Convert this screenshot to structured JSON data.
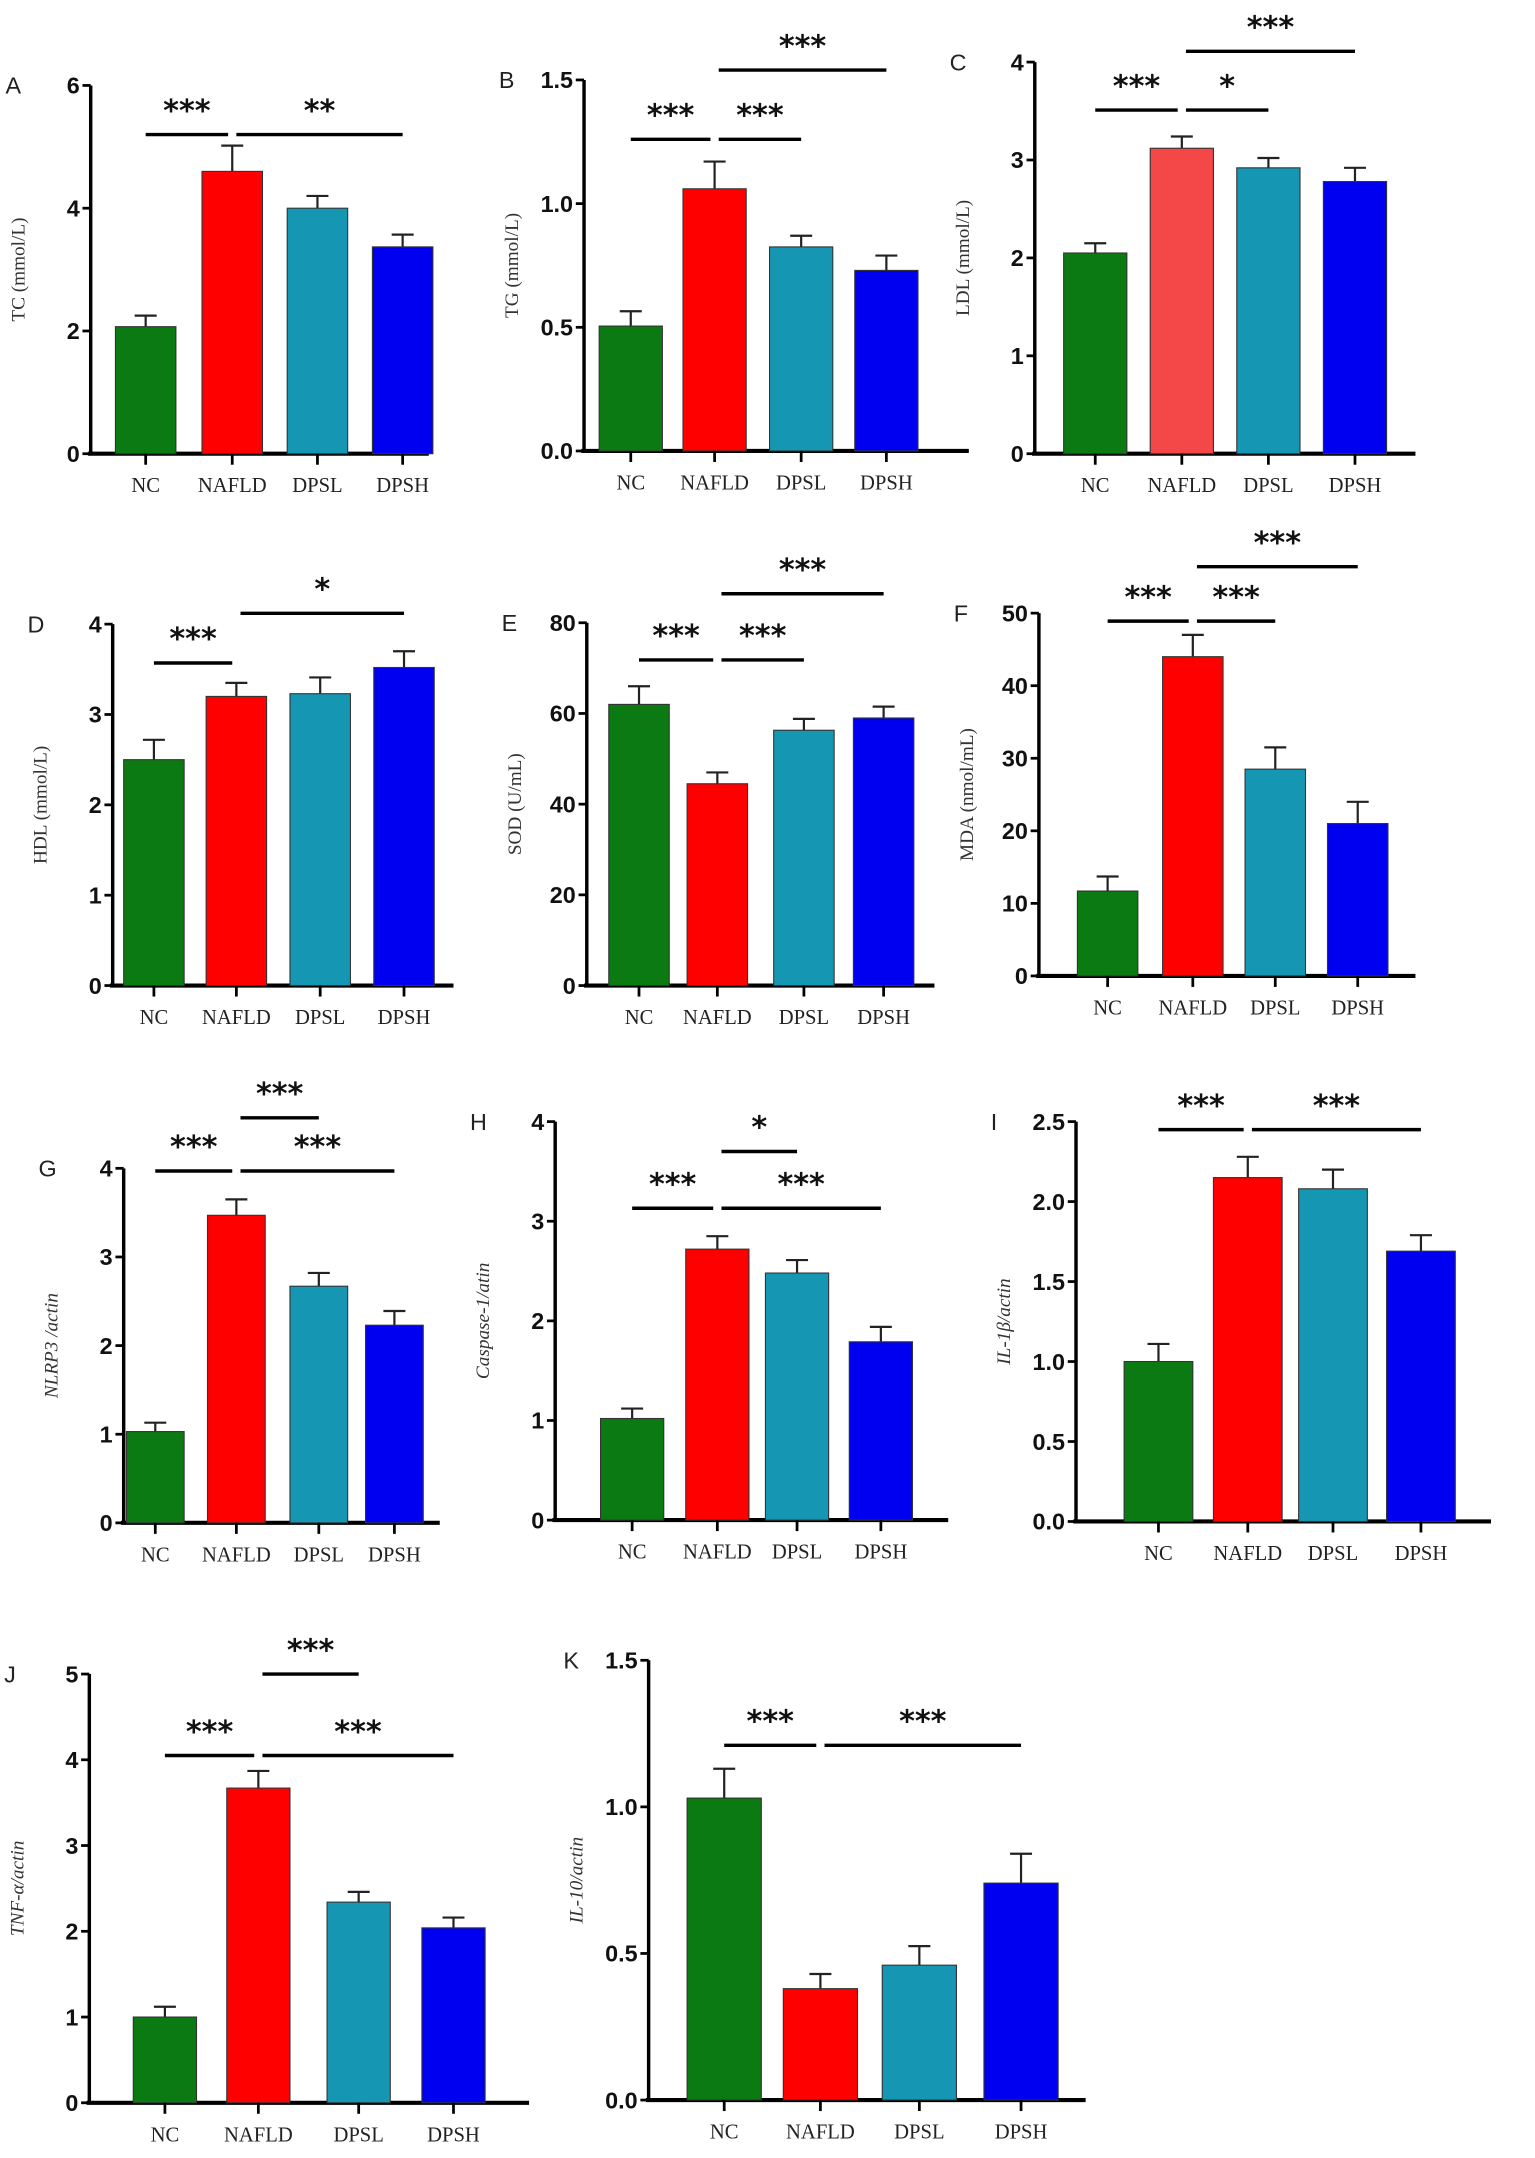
{
  "colors": {
    "NC": "#0b7a12",
    "NAFLD": "#ff0000",
    "NAFLD_C": "#f44848",
    "DPSL": "#1597b3",
    "DPSH": "#0000f0"
  },
  "chart_data": [
    {
      "type": "bar",
      "panel": "A",
      "ylabel": "TC (mmol/L)",
      "italic": false,
      "categories": [
        "NC",
        "NAFLD",
        "DPSL",
        "DPSH"
      ],
      "values": [
        2.07,
        4.6,
        4.0,
        3.37
      ],
      "errors": [
        0.18,
        0.42,
        0.2,
        0.2
      ],
      "ylim": [
        0,
        6
      ],
      "ticks": [
        "0",
        "2",
        "4",
        "6"
      ],
      "sig": [
        {
          "from": 0,
          "to": 1,
          "label": "***",
          "y": 5.2
        },
        {
          "from": 1,
          "to": 3,
          "label": "**",
          "y": 5.2
        }
      ]
    },
    {
      "type": "bar",
      "panel": "B",
      "ylabel": "TG (mmol/L)",
      "italic": false,
      "categories": [
        "NC",
        "NAFLD",
        "DPSL",
        "DPSH"
      ],
      "values": [
        0.505,
        1.06,
        0.825,
        0.73
      ],
      "errors": [
        0.06,
        0.11,
        0.045,
        0.06
      ],
      "ylim": [
        0,
        1.5
      ],
      "ticks": [
        "0.0",
        "0.5",
        "1.0",
        "1.5"
      ],
      "sig": [
        {
          "from": 0,
          "to": 1,
          "label": "***",
          "y": 1.26
        },
        {
          "from": 1,
          "to": 2,
          "label": "***",
          "y": 1.26
        },
        {
          "from": 1,
          "to": 3,
          "label": "***",
          "y": 1.54
        }
      ]
    },
    {
      "type": "bar",
      "panel": "C",
      "ylabel": "LDL (mmol/L)",
      "italic": false,
      "categories": [
        "NC",
        "NAFLD",
        "DPSL",
        "DPSH"
      ],
      "values": [
        2.05,
        3.12,
        2.92,
        2.78
      ],
      "errors": [
        0.1,
        0.12,
        0.1,
        0.14
      ],
      "ylim": [
        0,
        4
      ],
      "ticks": [
        "0",
        "1",
        "2",
        "3",
        "4"
      ],
      "sig": [
        {
          "from": 0,
          "to": 1,
          "label": "***",
          "y": 3.51
        },
        {
          "from": 1,
          "to": 2,
          "label": "*",
          "y": 3.51
        },
        {
          "from": 1,
          "to": 3,
          "label": "***",
          "y": 4.11
        }
      ]
    },
    {
      "type": "bar",
      "panel": "D",
      "ylabel": "HDL (mmol/L)",
      "italic": false,
      "categories": [
        "NC",
        "NAFLD",
        "DPSL",
        "DPSH"
      ],
      "values": [
        2.5,
        3.2,
        3.23,
        3.52
      ],
      "errors": [
        0.22,
        0.15,
        0.18,
        0.18
      ],
      "ylim": [
        0,
        4
      ],
      "ticks": [
        "0",
        "1",
        "2",
        "3",
        "4"
      ],
      "sig": [
        {
          "from": 0,
          "to": 1,
          "label": "***",
          "y": 3.57
        },
        {
          "from": 1,
          "to": 3,
          "label": "*",
          "y": 4.12
        }
      ]
    },
    {
      "type": "bar",
      "panel": "E",
      "ylabel": "SOD (U/mL)",
      "italic": false,
      "categories": [
        "NC",
        "NAFLD",
        "DPSL",
        "DPSH"
      ],
      "values": [
        62,
        44.5,
        56.3,
        59
      ],
      "errors": [
        4,
        2.5,
        2.5,
        2.5
      ],
      "ylim": [
        0,
        80
      ],
      "ticks": [
        "0",
        "20",
        "40",
        "60",
        "80"
      ],
      "sig": [
        {
          "from": 0,
          "to": 1,
          "label": "***",
          "y": 71.8
        },
        {
          "from": 1,
          "to": 2,
          "label": "***",
          "y": 71.8
        },
        {
          "from": 1,
          "to": 3,
          "label": "***",
          "y": 86.4
        }
      ]
    },
    {
      "type": "bar",
      "panel": "F",
      "ylabel": "MDA (nmol/mL)",
      "italic": false,
      "categories": [
        "NC",
        "NAFLD",
        "DPSL",
        "DPSH"
      ],
      "values": [
        11.7,
        44,
        28.5,
        21
      ],
      "errors": [
        2,
        3,
        3,
        3
      ],
      "ylim": [
        0,
        50
      ],
      "ticks": [
        "0",
        "10",
        "20",
        "30",
        "40",
        "50"
      ],
      "sig": [
        {
          "from": 0,
          "to": 1,
          "label": "***",
          "y": 48.9
        },
        {
          "from": 1,
          "to": 2,
          "label": "***",
          "y": 48.9
        },
        {
          "from": 1,
          "to": 3,
          "label": "***",
          "y": 56.4
        }
      ]
    },
    {
      "type": "bar",
      "panel": "G",
      "ylabel": "NLRP3 /actin",
      "italic": true,
      "categories": [
        "NC",
        "NAFLD",
        "DPSL",
        "DPSH"
      ],
      "values": [
        1.03,
        3.47,
        2.67,
        2.23
      ],
      "errors": [
        0.1,
        0.18,
        0.15,
        0.16
      ],
      "ylim": [
        0,
        4
      ],
      "ticks": [
        "0",
        "1",
        "2",
        "3",
        "4"
      ],
      "sig": [
        {
          "from": 0,
          "to": 1,
          "label": "***",
          "y": 3.97
        },
        {
          "from": 1,
          "to": 3,
          "label": "***",
          "y": 3.97
        },
        {
          "from": 1,
          "to": 2,
          "label": "***",
          "y": 4.57
        }
      ]
    },
    {
      "type": "bar",
      "panel": "H",
      "ylabel": "Caspase-1/atin",
      "italic": true,
      "categories": [
        "NC",
        "NAFLD",
        "DPSL",
        "DPSH"
      ],
      "values": [
        1.02,
        2.72,
        2.48,
        1.79
      ],
      "errors": [
        0.1,
        0.13,
        0.13,
        0.15
      ],
      "ylim": [
        0,
        4
      ],
      "ticks": [
        "0",
        "1",
        "2",
        "3",
        "4"
      ],
      "sig": [
        {
          "from": 0,
          "to": 1,
          "label": "***",
          "y": 3.13
        },
        {
          "from": 1,
          "to": 3,
          "label": "***",
          "y": 3.13
        },
        {
          "from": 1,
          "to": 2,
          "label": "*",
          "y": 3.7
        }
      ]
    },
    {
      "type": "bar",
      "panel": "I",
      "ylabel": "IL-1β/actin",
      "italic": true,
      "categories": [
        "NC",
        "NAFLD",
        "DPSL",
        "DPSH"
      ],
      "values": [
        1.0,
        2.15,
        2.08,
        1.69
      ],
      "errors": [
        0.11,
        0.13,
        0.12,
        0.1
      ],
      "ylim": [
        0,
        2.5
      ],
      "ticks": [
        "0.0",
        "0.5",
        "1.0",
        "1.5",
        "2.0",
        "2.5"
      ],
      "sig": [
        {
          "from": 0,
          "to": 1,
          "label": "***",
          "y": 2.45
        },
        {
          "from": 1,
          "to": 3,
          "label": "***",
          "y": 2.45
        }
      ]
    },
    {
      "type": "bar",
      "panel": "J",
      "ylabel": "TNF-α/actin",
      "italic": true,
      "categories": [
        "NC",
        "NAFLD",
        "DPSL",
        "DPSH"
      ],
      "values": [
        1.0,
        3.67,
        2.34,
        2.04
      ],
      "errors": [
        0.12,
        0.2,
        0.12,
        0.12
      ],
      "ylim": [
        0,
        5
      ],
      "ticks": [
        "0",
        "1",
        "2",
        "3",
        "4",
        "5"
      ],
      "sig": [
        {
          "from": 0,
          "to": 1,
          "label": "***",
          "y": 4.05
        },
        {
          "from": 1,
          "to": 3,
          "label": "***",
          "y": 4.05
        },
        {
          "from": 1,
          "to": 2,
          "label": "***",
          "y": 5.0
        }
      ]
    },
    {
      "type": "bar",
      "panel": "K",
      "ylabel": "IL-10/actin",
      "italic": true,
      "categories": [
        "NC",
        "NAFLD",
        "DPSL",
        "DPSH"
      ],
      "values": [
        1.03,
        0.38,
        0.46,
        0.74
      ],
      "errors": [
        0.1,
        0.05,
        0.065,
        0.1
      ],
      "ylim": [
        0,
        1.5
      ],
      "ticks": [
        "0.0",
        "0.5",
        "1.0",
        "1.5"
      ],
      "sig": [
        {
          "from": 0,
          "to": 1,
          "label": "***",
          "y": 1.21
        },
        {
          "from": 1,
          "to": 3,
          "label": "***",
          "y": 1.21
        }
      ]
    }
  ]
}
